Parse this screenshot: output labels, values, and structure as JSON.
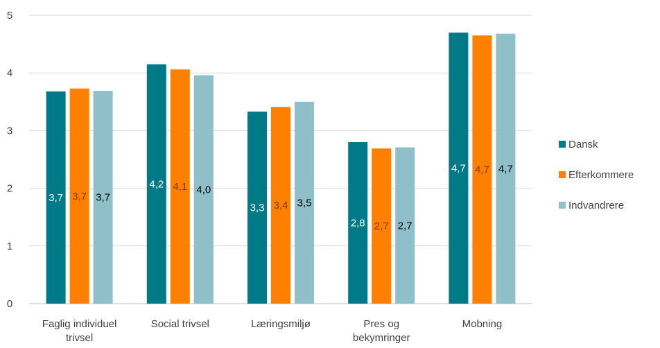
{
  "chart_data": {
    "type": "bar",
    "categories": [
      [
        "Faglig individuel",
        "trivsel"
      ],
      [
        "Social trivsel"
      ],
      [
        "Læringsmiljø"
      ],
      [
        "Pres og",
        "bekymringer"
      ],
      [
        "Mobning"
      ]
    ],
    "ylim": [
      0,
      5
    ],
    "yticks": [
      0,
      1,
      2,
      3,
      4,
      5
    ],
    "grid": true,
    "legend_position": "right",
    "series": [
      {
        "name": "Dansk",
        "color": "#007a87",
        "label_color": "#ffffff",
        "values": [
          3.68,
          4.15,
          3.33,
          2.8,
          4.7
        ],
        "labels": [
          "3,7",
          "4,2",
          "3,3",
          "2,8",
          "4,7"
        ]
      },
      {
        "name": "Efterkommere",
        "color": "#ff8000",
        "label_color": "#7a3a00",
        "values": [
          3.73,
          4.06,
          3.41,
          2.69,
          4.65
        ],
        "labels": [
          "3,7",
          "4,1",
          "3,4",
          "2,7",
          "4,7"
        ]
      },
      {
        "name": "Indvandrere",
        "color": "#8fbfc9",
        "label_color": "#000000",
        "values": [
          3.69,
          3.96,
          3.5,
          2.71,
          4.68
        ],
        "labels": [
          "3,7",
          "4,0",
          "3,5",
          "2,7",
          "4,7"
        ]
      }
    ]
  }
}
